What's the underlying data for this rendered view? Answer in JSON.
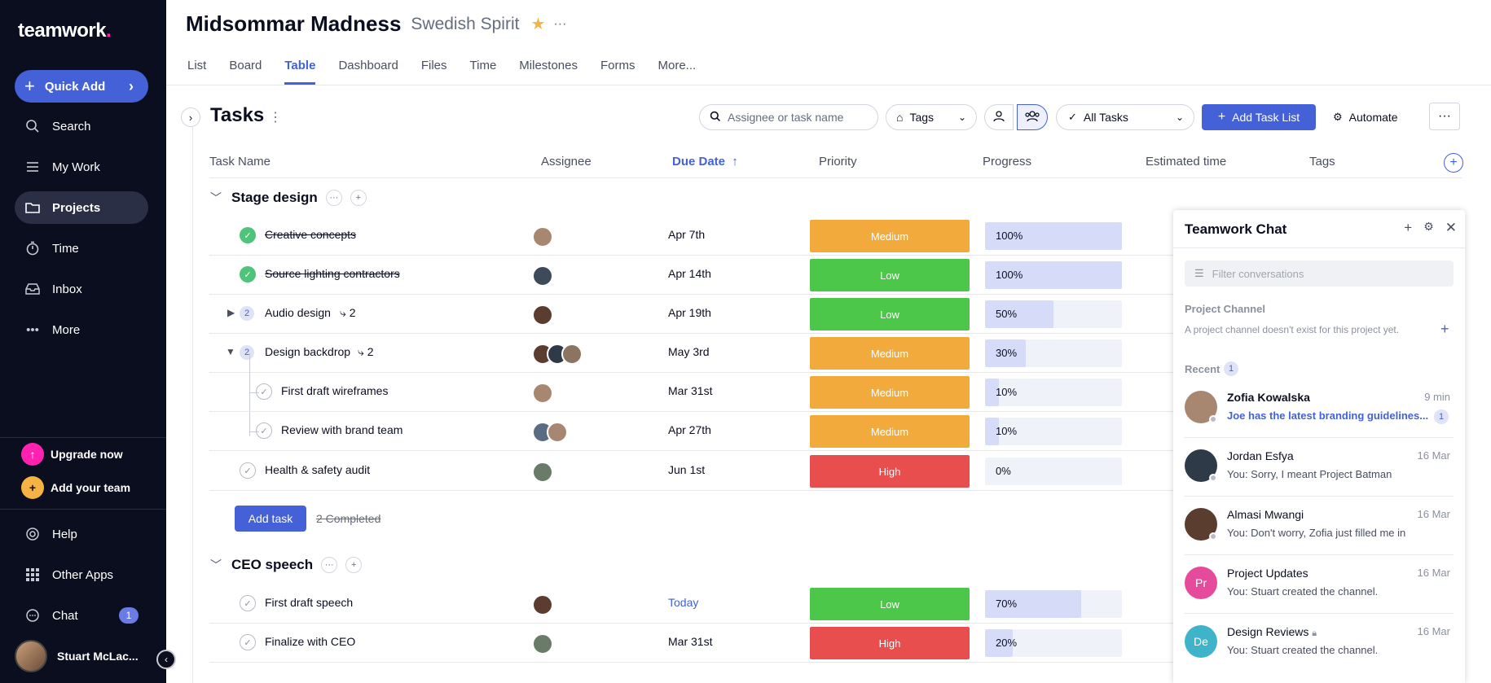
{
  "sidebar": {
    "logo_text": "teamwork",
    "logo_dot": ".",
    "quick_add": "Quick Add",
    "items": [
      {
        "label": "Search",
        "icon": "search-icon"
      },
      {
        "label": "My Work",
        "icon": "list-icon"
      },
      {
        "label": "Projects",
        "icon": "folder-icon",
        "active": true
      },
      {
        "label": "Time",
        "icon": "timer-icon"
      },
      {
        "label": "Inbox",
        "icon": "inbox-icon"
      },
      {
        "label": "More",
        "icon": "ellipsis-icon"
      }
    ],
    "upgrade": "Upgrade now",
    "add_team": "Add your team",
    "help": "Help",
    "other_apps": "Other Apps",
    "chat": "Chat",
    "chat_badge": "1",
    "user_name": "Stuart McLac..."
  },
  "header": {
    "project": "Midsommar Madness",
    "company": "Swedish Spirit"
  },
  "tabs": [
    "List",
    "Board",
    "Table",
    "Dashboard",
    "Files",
    "Time",
    "Milestones",
    "Forms",
    "More..."
  ],
  "active_tab": "Table",
  "toolbar": {
    "title": "Tasks",
    "search_placeholder": "Assignee or task name",
    "tags": "Tags",
    "filter": "All Tasks",
    "add_list": "Add Task List",
    "automate": "Automate"
  },
  "columns": [
    "Task Name",
    "Assignee",
    "Due Date",
    "Priority",
    "Progress",
    "Estimated time",
    "Tags"
  ],
  "sort_column": "Due Date",
  "groups": [
    {
      "name": "Stage design",
      "tasks": [
        {
          "name": "Creative concepts",
          "due": "Apr 7th",
          "priority": "Medium",
          "progress": "100%",
          "progress_value": 100,
          "done": true
        },
        {
          "name": "Source lighting contractors",
          "due": "Apr 14th",
          "priority": "Low",
          "progress": "100%",
          "progress_value": 100,
          "done": true
        },
        {
          "name": "Audio design",
          "subtasks": "2",
          "subcount": "2",
          "due": "Apr 19th",
          "priority": "Low",
          "progress": "50%",
          "progress_value": 50
        },
        {
          "name": "Design backdrop",
          "subtasks": "2",
          "subcount": "2",
          "due": "May 3rd",
          "priority": "Medium",
          "progress": "30%",
          "progress_value": 30
        },
        {
          "name": "First draft wireframes",
          "due": "Mar 31st",
          "priority": "Medium",
          "progress": "10%",
          "progress_value": 10
        },
        {
          "name": "Review with brand team",
          "due": "Apr 27th",
          "priority": "Medium",
          "progress": "10%",
          "progress_value": 10
        },
        {
          "name": "Health & safety audit",
          "due": "Jun 1st",
          "priority": "High",
          "progress": "0%",
          "progress_value": 0
        }
      ],
      "add_task": "Add task",
      "completed": "2 Completed"
    },
    {
      "name": "CEO speech",
      "tasks": [
        {
          "name": "First draft speech",
          "due": "Today",
          "priority": "Low",
          "progress": "70%",
          "progress_value": 70
        },
        {
          "name": "Finalize with CEO",
          "due": "Mar 31st",
          "priority": "High",
          "progress": "20%",
          "progress_value": 20
        }
      ]
    }
  ],
  "priority_colors": {
    "Medium": "#f2aa3c",
    "Low": "#4cc74a",
    "High": "#e84e4e"
  },
  "chat": {
    "title": "Teamwork Chat",
    "filter_placeholder": "Filter conversations",
    "project_channel": "Project Channel",
    "channel_note": "A project channel doesn't exist for this project yet.",
    "recent": "Recent",
    "recent_badge": "1",
    "conversations": [
      {
        "name": "Zofia Kowalska",
        "time": "9 min",
        "message": "Joe has the latest branding guidelines...",
        "unread": "1"
      },
      {
        "name": "Jordan Esfya",
        "time": "16 Mar",
        "message": "You: Sorry, I meant Project Batman"
      },
      {
        "name": "Almasi Mwangi",
        "time": "16 Mar",
        "message": "You: Don't worry, Zofia just filled me in"
      },
      {
        "name": "Project Updates",
        "initials": "Pr",
        "time": "16 Mar",
        "message": "You: Stuart created the channel."
      },
      {
        "name": "Design Reviews",
        "initials": "De",
        "time": "16 Mar",
        "message": "You: Stuart created the channel."
      }
    ]
  }
}
